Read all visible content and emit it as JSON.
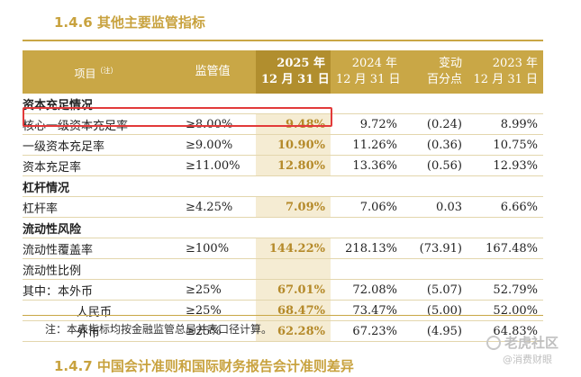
{
  "section_title": "1.4.6 其他主要监管指标",
  "header": {
    "item": "项目",
    "item_note": "（注）",
    "regulatory": "监管值",
    "col2025_line1": "2025 年",
    "col2025_line2": "12 月 31 日",
    "col2024_line1": "2024 年",
    "col2024_line2": "12 月 31 日",
    "change_line1": "变动",
    "change_line2": "百分点",
    "col2023_line1": "2023 年",
    "col2023_line2": "12 月 31 日"
  },
  "rows": [
    {
      "label": "资本充足情况",
      "group": true
    },
    {
      "label": "核心一级资本充足率",
      "reg": "≥8.00%",
      "v2025": "9.48%",
      "v2024": "9.72%",
      "change": "(0.24)",
      "v2023": "8.99%"
    },
    {
      "label": "一级资本充足率",
      "reg": "≥9.00%",
      "v2025": "10.90%",
      "v2024": "11.26%",
      "change": "(0.36)",
      "v2023": "10.75%"
    },
    {
      "label": "资本充足率",
      "reg": "≥11.00%",
      "v2025": "12.80%",
      "v2024": "13.36%",
      "change": "(0.56)",
      "v2023": "12.93%"
    },
    {
      "label": "杠杆情况",
      "group": true
    },
    {
      "label": "杠杆率",
      "reg": "≥4.25%",
      "v2025": "7.09%",
      "v2024": "7.06%",
      "change": "0.03",
      "v2023": "6.66%"
    },
    {
      "label": "流动性风险",
      "group": true
    },
    {
      "label": "流动性覆盖率",
      "reg": "≥100%",
      "v2025": "144.22%",
      "v2024": "218.13%",
      "change": "(73.91)",
      "v2023": "167.48%"
    },
    {
      "label": "流动性比例",
      "reg": "",
      "v2025": "",
      "v2024": "",
      "change": "",
      "v2023": ""
    },
    {
      "label": "其中：本外币",
      "reg": "≥25%",
      "v2025": "67.01%",
      "v2024": "72.08%",
      "change": "(5.07)",
      "v2023": "52.79%"
    },
    {
      "label": "人民币",
      "reg": "≥25%",
      "v2025": "68.47%",
      "v2024": "73.47%",
      "change": "(5.00)",
      "v2023": "52.00%"
    },
    {
      "label": "外币",
      "reg": "≥25%",
      "v2025": "62.28%",
      "v2024": "67.23%",
      "change": "(4.95)",
      "v2023": "64.83%"
    }
  ],
  "note": "注：本表指标均按金融监管总局并表口径计算。",
  "next_section_title": "1.4.7 中国会计准则和国际财务报告会计准则差异",
  "watermark": {
    "line1": "老虎社区",
    "line2": "@消费财眼"
  },
  "colors": {
    "gold": "#c9a746",
    "highlight_box": "#e23a3a",
    "highlight_col": "#f5ecd3"
  }
}
